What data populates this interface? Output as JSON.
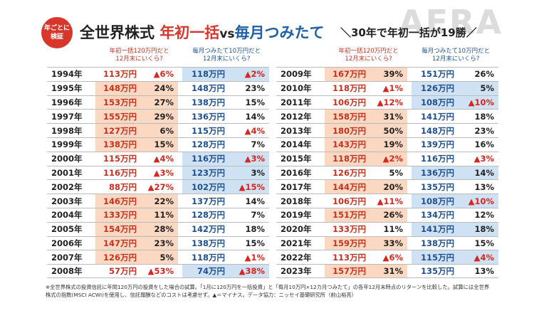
{
  "header": {
    "badge": "年ごとに検証",
    "title_part1": "全世界株式",
    "title_lump": "年初一括",
    "title_vs": "vs",
    "title_monthly": "毎月つみたて",
    "tagline": "＼30年で年初一括が19勝／",
    "watermark": "AERA"
  },
  "tables": [
    {
      "col_lump": "年初一括120万円だと\n12月末にいくら?",
      "col_monthly": "毎月つみたて10万円だと\n12月末にいくら?",
      "rows": [
        {
          "year": "1994年",
          "lump": "113万円",
          "lump_pct": "▲6%",
          "monthly": "118万円",
          "monthly_pct": "▲2%",
          "winner": "monthly"
        },
        {
          "year": "1995年",
          "lump": "148万円",
          "lump_pct": "24%",
          "monthly": "148万円",
          "monthly_pct": "23%",
          "winner": "lump"
        },
        {
          "year": "1996年",
          "lump": "153万円",
          "lump_pct": "27%",
          "monthly": "138万円",
          "monthly_pct": "15%",
          "winner": "lump"
        },
        {
          "year": "1997年",
          "lump": "155万円",
          "lump_pct": "29%",
          "monthly": "136万円",
          "monthly_pct": "14%",
          "winner": "lump"
        },
        {
          "year": "1998年",
          "lump": "127万円",
          "lump_pct": "6%",
          "monthly": "115万円",
          "monthly_pct": "▲4%",
          "winner": "lump"
        },
        {
          "year": "1999年",
          "lump": "138万円",
          "lump_pct": "15%",
          "monthly": "128万円",
          "monthly_pct": "7%",
          "winner": "lump"
        },
        {
          "year": "2000年",
          "lump": "115万円",
          "lump_pct": "▲4%",
          "monthly": "116万円",
          "monthly_pct": "▲3%",
          "winner": "monthly"
        },
        {
          "year": "2001年",
          "lump": "116万円",
          "lump_pct": "▲3%",
          "monthly": "123万円",
          "monthly_pct": "3%",
          "winner": "monthly"
        },
        {
          "year": "2002年",
          "lump": "88万円",
          "lump_pct": "▲27%",
          "monthly": "102万円",
          "monthly_pct": "▲15%",
          "winner": "monthly"
        },
        {
          "year": "2003年",
          "lump": "146万円",
          "lump_pct": "22%",
          "monthly": "137万円",
          "monthly_pct": "14%",
          "winner": "lump"
        },
        {
          "year": "2004年",
          "lump": "133万円",
          "lump_pct": "11%",
          "monthly": "128万円",
          "monthly_pct": "7%",
          "winner": "lump"
        },
        {
          "year": "2005年",
          "lump": "154万円",
          "lump_pct": "28%",
          "monthly": "142万円",
          "monthly_pct": "18%",
          "winner": "lump"
        },
        {
          "year": "2006年",
          "lump": "147万円",
          "lump_pct": "23%",
          "monthly": "138万円",
          "monthly_pct": "15%",
          "winner": "lump"
        },
        {
          "year": "2007年",
          "lump": "126万円",
          "lump_pct": "5%",
          "monthly": "118万円",
          "monthly_pct": "▲1%",
          "winner": "lump"
        },
        {
          "year": "2008年",
          "lump": "57万円",
          "lump_pct": "▲53%",
          "monthly": "74万円",
          "monthly_pct": "▲38%",
          "winner": "monthly"
        }
      ]
    },
    {
      "col_lump": "年初一括120万円だと\n12月末にいくら?",
      "col_monthly": "毎月つみたて10万円だと\n12月末にいくら?",
      "rows": [
        {
          "year": "2009年",
          "lump": "167万円",
          "lump_pct": "39%",
          "monthly": "151万円",
          "monthly_pct": "26%",
          "winner": "lump"
        },
        {
          "year": "2010年",
          "lump": "118万円",
          "lump_pct": "▲1%",
          "monthly": "126万円",
          "monthly_pct": "5%",
          "winner": "monthly"
        },
        {
          "year": "2011年",
          "lump": "106万円",
          "lump_pct": "▲12%",
          "monthly": "108万円",
          "monthly_pct": "▲10%",
          "winner": "monthly"
        },
        {
          "year": "2012年",
          "lump": "158万円",
          "lump_pct": "31%",
          "monthly": "141万円",
          "monthly_pct": "18%",
          "winner": "lump"
        },
        {
          "year": "2013年",
          "lump": "180万円",
          "lump_pct": "50%",
          "monthly": "148万円",
          "monthly_pct": "23%",
          "winner": "lump"
        },
        {
          "year": "2014年",
          "lump": "143万円",
          "lump_pct": "19%",
          "monthly": "139万円",
          "monthly_pct": "16%",
          "winner": "lump"
        },
        {
          "year": "2015年",
          "lump": "118万円",
          "lump_pct": "▲2%",
          "monthly": "116万円",
          "monthly_pct": "▲3%",
          "winner": "lump"
        },
        {
          "year": "2016年",
          "lump": "126万円",
          "lump_pct": "5%",
          "monthly": "136万円",
          "monthly_pct": "14%",
          "winner": "monthly"
        },
        {
          "year": "2017年",
          "lump": "144万円",
          "lump_pct": "20%",
          "monthly": "135万円",
          "monthly_pct": "13%",
          "winner": "lump"
        },
        {
          "year": "2018年",
          "lump": "106万円",
          "lump_pct": "▲11%",
          "monthly": "108万円",
          "monthly_pct": "▲10%",
          "winner": "monthly"
        },
        {
          "year": "2019年",
          "lump": "151万円",
          "lump_pct": "26%",
          "monthly": "134万円",
          "monthly_pct": "12%",
          "winner": "lump"
        },
        {
          "year": "2020年",
          "lump": "133万円",
          "lump_pct": "11%",
          "monthly": "141万円",
          "monthly_pct": "18%",
          "winner": "monthly"
        },
        {
          "year": "2021年",
          "lump": "159万円",
          "lump_pct": "33%",
          "monthly": "138万円",
          "monthly_pct": "15%",
          "winner": "lump"
        },
        {
          "year": "2022年",
          "lump": "113万円",
          "lump_pct": "▲6%",
          "monthly": "115万円",
          "monthly_pct": "▲4%",
          "winner": "monthly"
        },
        {
          "year": "2023年",
          "lump": "157万円",
          "lump_pct": "31%",
          "monthly": "135万円",
          "monthly_pct": "13%",
          "winner": "lump"
        }
      ]
    }
  ],
  "footnote": "※全世界株式の投資信託に年間120万円の投資をした場合の試算。「1月に120万円を一括投資」と「毎月10万円×12カ月つみたて」の各年12月末時点のリターンを比較した。試算には全世界株式の指数(MSCI ACWI)を使用し、信託報酬などのコストは考慮せず。▲＝マイナス。データ協力：ニッセイ基礎研究所（前山裕亮）"
}
